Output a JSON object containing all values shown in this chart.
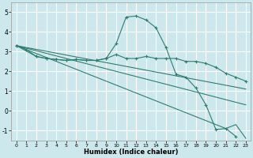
{
  "xlabel": "Humidex (Indice chaleur)",
  "background_color": "#cde8ec",
  "grid_color": "#ffffff",
  "line_color": "#2e7d6e",
  "xlim": [
    -0.5,
    23.5
  ],
  "ylim": [
    -1.5,
    5.5
  ],
  "yticks": [
    -1,
    0,
    1,
    2,
    3,
    4,
    5
  ],
  "xticks": [
    0,
    1,
    2,
    3,
    4,
    5,
    6,
    7,
    8,
    9,
    10,
    11,
    12,
    13,
    14,
    15,
    16,
    17,
    18,
    19,
    20,
    21,
    22,
    23
  ],
  "series1_x": [
    0,
    1,
    2,
    3,
    4,
    5,
    6,
    7,
    8,
    9,
    10,
    11,
    12,
    13,
    14,
    15,
    16,
    17,
    18,
    19,
    20,
    21,
    22
  ],
  "series1_y": [
    3.3,
    3.1,
    2.75,
    2.65,
    2.6,
    2.55,
    2.6,
    2.55,
    2.55,
    2.65,
    3.4,
    4.75,
    4.8,
    4.6,
    4.2,
    3.2,
    1.85,
    1.7,
    1.15,
    0.3,
    -0.95,
    -0.9,
    -1.3
  ],
  "series2_x": [
    0,
    2,
    3,
    4,
    5,
    6,
    7,
    8,
    9,
    10,
    11,
    12,
    13,
    14,
    15,
    16,
    17,
    18,
    19,
    20,
    21,
    22,
    23
  ],
  "series2_y": [
    3.3,
    2.75,
    2.65,
    2.6,
    2.55,
    2.6,
    2.55,
    2.55,
    2.65,
    2.85,
    2.65,
    2.65,
    2.75,
    2.65,
    2.65,
    2.65,
    2.5,
    2.5,
    2.4,
    2.2,
    1.9,
    1.7,
    1.5
  ],
  "series3_x": [
    0,
    23
  ],
  "series3_y": [
    3.3,
    1.1
  ],
  "series4_x": [
    0,
    23
  ],
  "series4_y": [
    3.3,
    0.3
  ],
  "series5_x": [
    0,
    21,
    22,
    23
  ],
  "series5_y": [
    3.3,
    -0.9,
    -0.7,
    -1.4
  ]
}
